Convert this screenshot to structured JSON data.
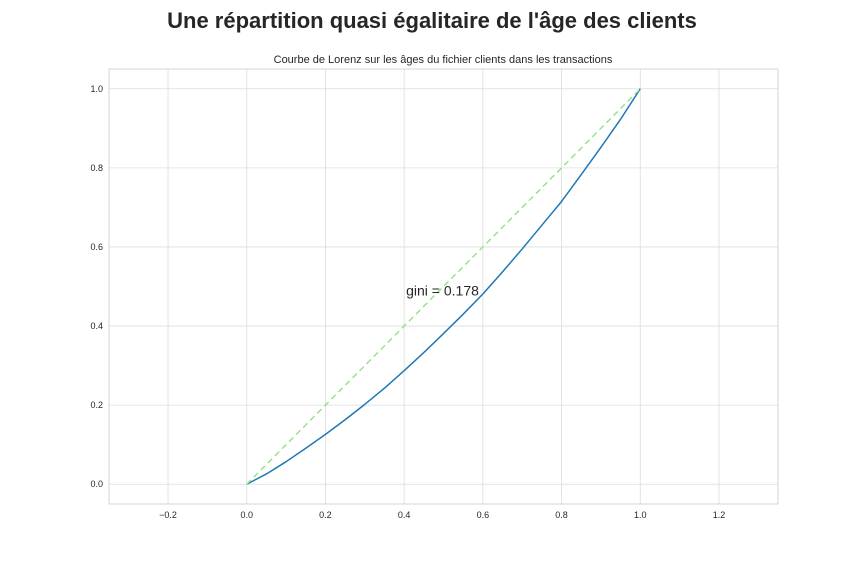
{
  "figure": {
    "suptitle": "Une répartition quasi égalitaire de l'âge des clients"
  },
  "chart_data": {
    "type": "line",
    "title": "Courbe de Lorenz sur les âges du fichier clients dans les transactions",
    "xlabel": "",
    "ylabel": "",
    "xlim": [
      -0.35,
      1.35
    ],
    "ylim": [
      -0.05,
      1.05
    ],
    "xticks": [
      -0.2,
      0.0,
      0.2,
      0.4,
      0.6,
      0.8,
      1.0,
      1.2
    ],
    "xtick_labels": [
      "−0.2",
      "0.0",
      "0.2",
      "0.4",
      "0.6",
      "0.8",
      "1.0",
      "1.2"
    ],
    "yticks": [
      0.0,
      0.2,
      0.4,
      0.6,
      0.8,
      1.0
    ],
    "ytick_labels": [
      "0.0",
      "0.2",
      "0.4",
      "0.6",
      "0.8",
      "1.0"
    ],
    "grid": true,
    "series": [
      {
        "style": "solid",
        "color": "#1f77b4",
        "x": [
          0.0,
          0.05,
          0.1,
          0.15,
          0.2,
          0.25,
          0.3,
          0.35,
          0.4,
          0.45,
          0.5,
          0.55,
          0.6,
          0.65,
          0.7,
          0.75,
          0.8,
          0.85,
          0.9,
          0.95,
          1.0
        ],
        "y": [
          0.0,
          0.026,
          0.057,
          0.091,
          0.126,
          0.163,
          0.202,
          0.243,
          0.287,
          0.333,
          0.381,
          0.43,
          0.481,
          0.537,
          0.595,
          0.655,
          0.715,
          0.783,
          0.852,
          0.923,
          1.0
        ]
      },
      {
        "style": "dashed",
        "color": "#98df8a",
        "x": [
          0.0,
          1.0
        ],
        "y": [
          0.0,
          1.0
        ]
      }
    ],
    "annotations": [
      {
        "text": "gini = 0.178",
        "x": 0.405,
        "y": 0.49
      }
    ]
  }
}
